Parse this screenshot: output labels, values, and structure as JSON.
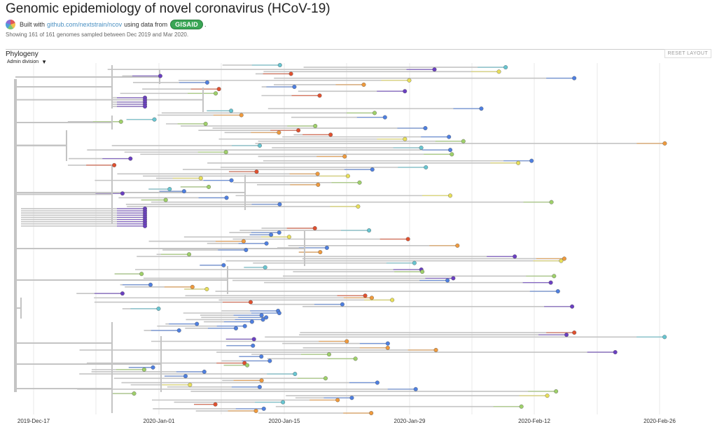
{
  "header": {
    "title": "Genomic epidemiology of novel coronavirus (HCoV-19)",
    "built_with_prefix": "Built with",
    "built_with_link": "github.com/nextstrain/ncov",
    "using_data_from": "using data from",
    "gisaid_label": "GISAID",
    "trailing_period": ".",
    "summary": "Showing 161 of 161 genomes sampled between Dec 2019 and Mar 2020."
  },
  "panel": {
    "title": "Phylogeny",
    "color_by": "Admin division",
    "reset_button": "RESET LAYOUT"
  },
  "axis": {
    "ticks": [
      "2019-Dec-17",
      "2020-Jan-01",
      "2020-Jan-15",
      "2020-Jan-29",
      "2020-Feb-12",
      "2020-Feb-26"
    ]
  },
  "colors": {
    "branch_grey": "#c4c4c4",
    "purple": "#6a3fc1",
    "blue": "#4e7fe0",
    "teal": "#67c5d1",
    "green": "#9fd06a",
    "yellow": "#e8df5a",
    "orange": "#ef9a3d",
    "red": "#e0502f"
  }
}
